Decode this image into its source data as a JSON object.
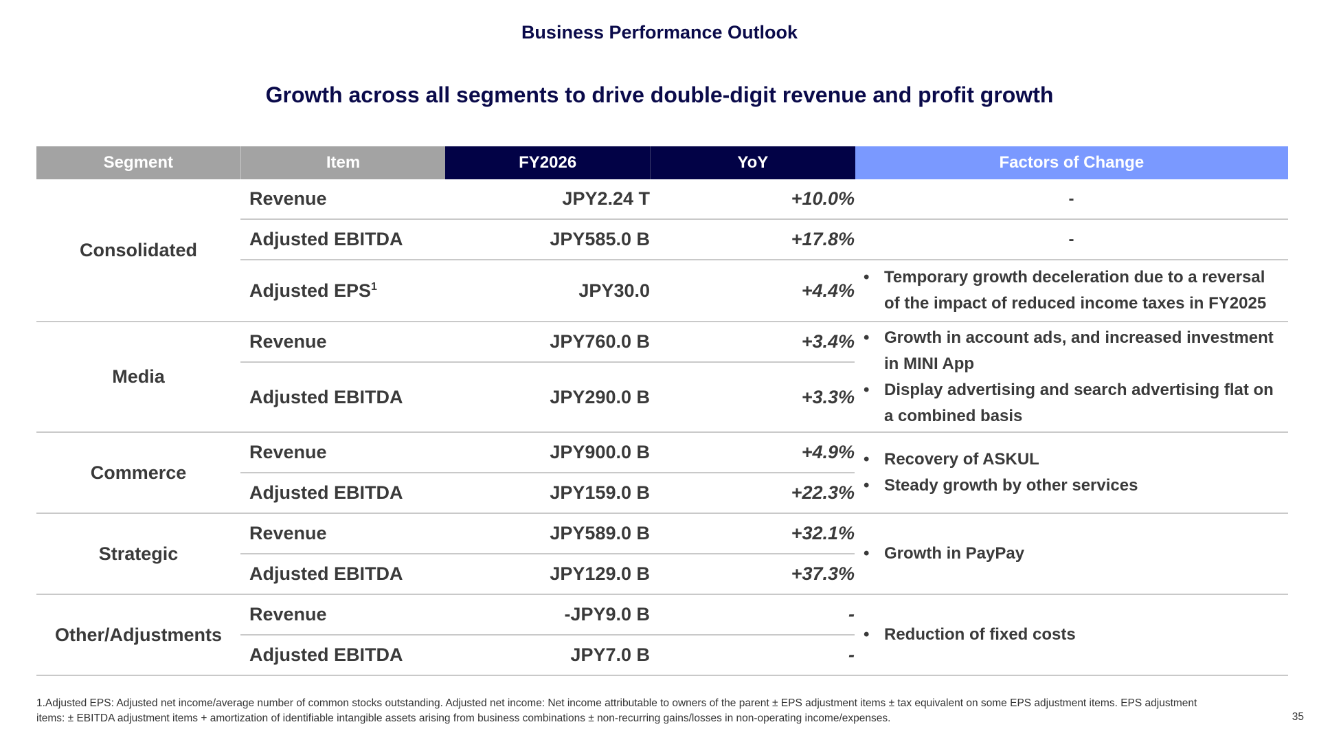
{
  "title": "Business Performance Outlook",
  "headline": "Growth across all segments to drive double-digit revenue and profit growth",
  "table": {
    "headers": {
      "segment": "Segment",
      "item": "Item",
      "fy": "FY2026",
      "yoy": "YoY",
      "factors": "Factors of Change"
    },
    "groups": [
      {
        "segment": "Consolidated",
        "rows": [
          {
            "item": "Revenue",
            "fy": "JPY2.24 T",
            "yoy": "+10.0%",
            "factor": "-"
          },
          {
            "item": "Adjusted EBITDA",
            "fy": "JPY585.0 B",
            "yoy": "+17.8%",
            "factor": "-"
          },
          {
            "item": "Adjusted EPS",
            "sup": "1",
            "fy": "JPY30.0",
            "yoy": "+4.4%"
          }
        ],
        "eps_factor": "Temporary growth deceleration due to a reversal of the impact of reduced income taxes in FY2025"
      },
      {
        "segment": "Media",
        "rows": [
          {
            "item": "Revenue",
            "fy": "JPY760.0 B",
            "yoy": "+3.4%"
          },
          {
            "item": "Adjusted EBITDA",
            "fy": "JPY290.0 B",
            "yoy": "+3.3%"
          }
        ],
        "factors": [
          "Growth in account ads, and increased investment in MINI App",
          "Display advertising and search advertising flat on a combined basis"
        ]
      },
      {
        "segment": "Commerce",
        "rows": [
          {
            "item": "Revenue",
            "fy": "JPY900.0 B",
            "yoy": "+4.9%"
          },
          {
            "item": "Adjusted EBITDA",
            "fy": "JPY159.0 B",
            "yoy": "+22.3%"
          }
        ],
        "factors": [
          "Recovery of ASKUL",
          "Steady growth by other services"
        ]
      },
      {
        "segment": "Strategic",
        "rows": [
          {
            "item": "Revenue",
            "fy": "JPY589.0 B",
            "yoy": "+32.1%"
          },
          {
            "item": "Adjusted EBITDA",
            "fy": "JPY129.0 B",
            "yoy": "+37.3%"
          }
        ],
        "factors": [
          "Growth in PayPay"
        ]
      },
      {
        "segment": "Other/Adjustments",
        "rows": [
          {
            "item": "Revenue",
            "fy": "-JPY9.0 B",
            "yoy": "-"
          },
          {
            "item": "Adjusted EBITDA",
            "fy": "JPY7.0 B",
            "yoy": "-"
          }
        ],
        "factors": [
          "Reduction of fixed costs"
        ]
      }
    ],
    "bullet_char": "•"
  },
  "footnote": {
    "line1": "1.Adjusted EPS: Adjusted net income/average number of common stocks outstanding. Adjusted net income: Net income attributable to owners of the parent ± EPS adjustment items ± tax equivalent on some EPS adjustment items. EPS adjustment",
    "line2": "items: ± EBITDA adjustment items + amortization of identifiable intangible assets arising from business combinations ± non-recurring gains/losses in non-operating income/expenses."
  },
  "page_number": "35"
}
